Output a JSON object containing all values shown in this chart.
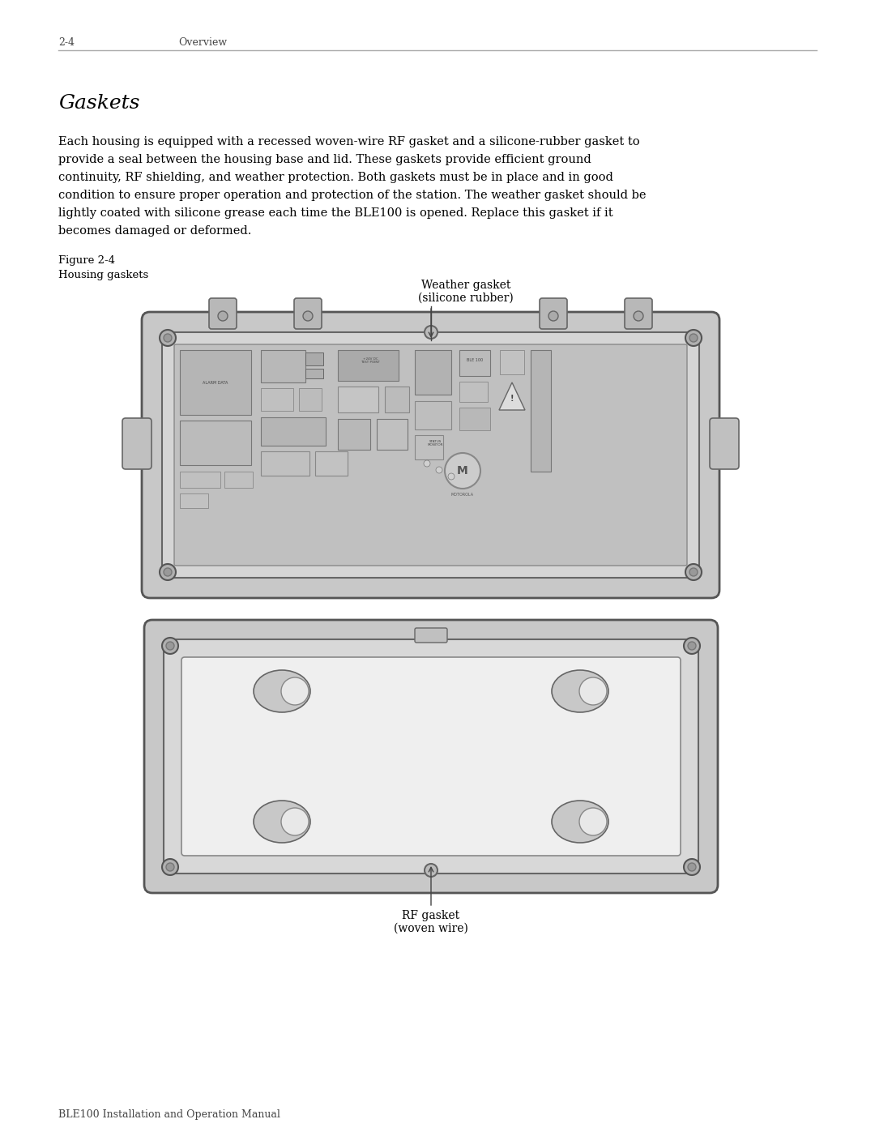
{
  "bg_color": "#ffffff",
  "header_left": "2-4",
  "header_center": "Overview",
  "footer_left": "BLE100 Installation and Operation Manual",
  "section_title": "Gaskets",
  "body_text": "Each housing is equipped with a recessed woven-wire RF gasket and a silicone-rubber gasket to\nprovide a seal between the housing base and lid. These gaskets provide efficient ground\ncontinuity, RF shielding, and weather protection. Both gaskets must be in place and in good\ncondition to ensure proper operation and protection of the station. The weather gasket should be\nlightly coated with silicone grease each time the BLE100 is opened. Replace this gasket if it\nbecomes damaged or deformed.",
  "fig_label": "Figure 2-4",
  "fig_caption": "Housing gaskets",
  "weather_label": "Weather gasket\n(silicone rubber)",
  "rf_label": "RF gasket\n(woven wire)",
  "text_color": "#000000",
  "line_color": "#888888",
  "box_color": "#cccccc",
  "device_color": "#d8d8d8",
  "inner_color": "#e8e8e8"
}
